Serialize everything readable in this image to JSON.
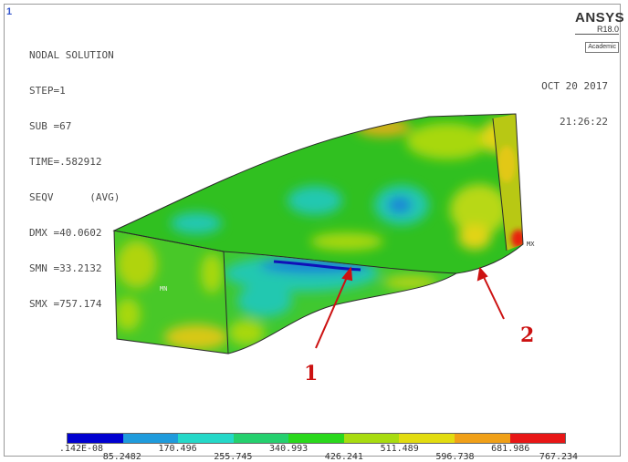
{
  "window_number": "1",
  "info": {
    "line1": "NODAL SOLUTION",
    "line2": "STEP=1",
    "line3": "SUB =67",
    "line4": "TIME=.582912",
    "line5": "SEQV      (AVG)",
    "line6": "DMX =40.0602",
    "line7": "SMN =33.2132",
    "line8": "SMX =757.174"
  },
  "logo": {
    "name": "ANSYS",
    "version": "R18.0",
    "edition": "Academic"
  },
  "datetime": {
    "date": "OCT 20 2017",
    "time": "21:26:22"
  },
  "markers": {
    "mn": "MN",
    "mx": "MX"
  },
  "annotations": {
    "label1": "1",
    "label2": "2",
    "color": "#cc1111"
  },
  "legend": {
    "colors": [
      "#0000d0",
      "#1f9bdc",
      "#25d8c8",
      "#25d06e",
      "#2ad81c",
      "#a8dc10",
      "#e2dc10",
      "#f0a018",
      "#e81616"
    ],
    "labels_top": [
      ".142E-08",
      "170.496",
      "340.993",
      "511.489",
      "681.986"
    ],
    "labels_bottom": [
      "85.2482",
      "255.745",
      "426.241",
      "596.738",
      "767.234"
    ]
  }
}
